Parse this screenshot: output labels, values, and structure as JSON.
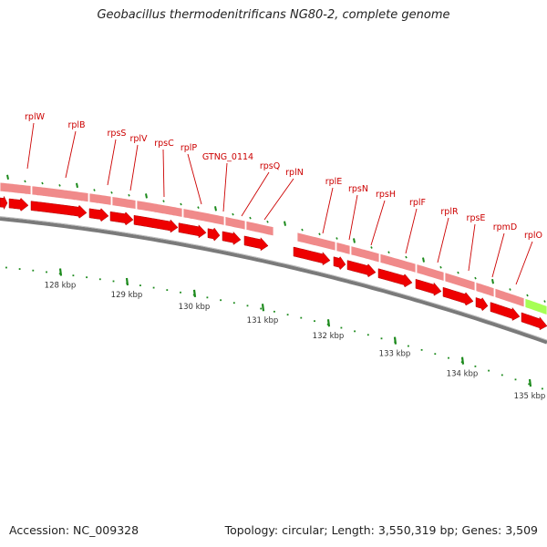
{
  "title": "Geobacillus thermodenitrificans NG80-2, complete genome",
  "footer": {
    "accession": "Accession: NC_009328",
    "summary": "Topology: circular; Length: 3,550,319 bp; Genes: 3,509"
  },
  "colors": {
    "gene_label": "#cc0000",
    "cds_light": "#f08a8a",
    "cds_dark": "#ee0000",
    "other_feature": "#a6ff55",
    "backbone": "#7a7a7a",
    "tick": "#1c8a1c"
  },
  "ruler": {
    "unit": "kbp",
    "labels": [
      "128 kbp",
      "129 kbp",
      "130 kbp",
      "131 kbp",
      "132 kbp",
      "133 kbp",
      "134 kbp",
      "135 kbp"
    ]
  },
  "genes": [
    {
      "name": "rplW"
    },
    {
      "name": "rplB"
    },
    {
      "name": "rpsS"
    },
    {
      "name": "rplV"
    },
    {
      "name": "rpsC"
    },
    {
      "name": "rplP"
    },
    {
      "name": "GTNG_0114"
    },
    {
      "name": "rpsQ"
    },
    {
      "name": "rplN"
    },
    {
      "name": "rplE"
    },
    {
      "name": "rpsN"
    },
    {
      "name": "rpsH"
    },
    {
      "name": "rplF"
    },
    {
      "name": "rplR"
    },
    {
      "name": "rpsE"
    },
    {
      "name": "rpmD"
    },
    {
      "name": "rplO"
    }
  ]
}
